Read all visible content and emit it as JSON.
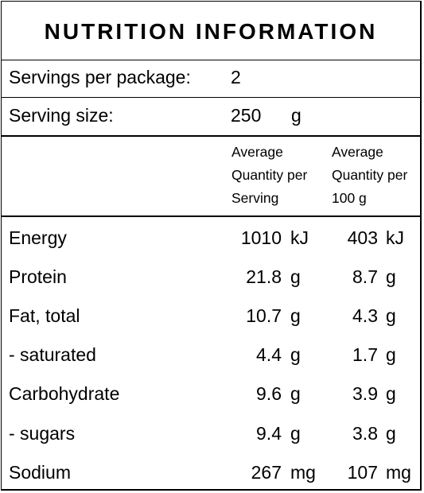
{
  "title": "NUTRITION INFORMATION",
  "servings_per_package": {
    "label": "Servings per package:",
    "value": "2"
  },
  "serving_size": {
    "label": "Serving size:",
    "value": "250",
    "unit": "g"
  },
  "columns": {
    "per_serving": [
      "Average",
      "Quantity per",
      "Serving"
    ],
    "per_100g": [
      "Average",
      "Quantity per",
      "100 g"
    ]
  },
  "rows": [
    {
      "name": "Energy",
      "serving": "1010",
      "serving_unit": "kJ",
      "per100": "403",
      "per100_unit": "kJ"
    },
    {
      "name": "Protein",
      "serving": "21.8",
      "serving_unit": "g",
      "per100": "8.7",
      "per100_unit": "g"
    },
    {
      "name": "Fat, total",
      "serving": "10.7",
      "serving_unit": "g",
      "per100": "4.3",
      "per100_unit": "g"
    },
    {
      "name": "- saturated",
      "serving": "4.4",
      "serving_unit": "g",
      "per100": "1.7",
      "per100_unit": "g"
    },
    {
      "name": "Carbohydrate",
      "serving": "9.6",
      "serving_unit": "g",
      "per100": "3.9",
      "per100_unit": "g"
    },
    {
      "name": "- sugars",
      "serving": "9.4",
      "serving_unit": "g",
      "per100": "3.8",
      "per100_unit": "g"
    },
    {
      "name": "Sodium",
      "serving": "267",
      "serving_unit": "mg",
      "per100": "107",
      "per100_unit": "mg"
    }
  ]
}
